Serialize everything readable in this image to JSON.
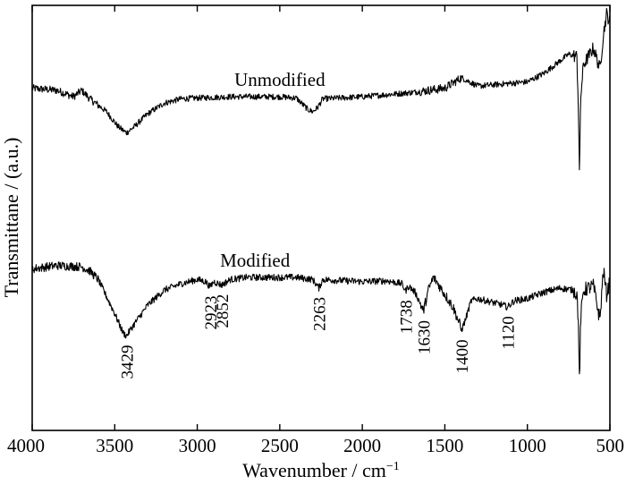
{
  "chart_data": {
    "type": "line",
    "title": "",
    "xlabel": "Wavenumber / cm",
    "xlabel_sup": "−1",
    "ylabel": "Transmittane / (a.u.)",
    "xlim": [
      4000,
      500
    ],
    "x_reversed": true,
    "ylim": [
      0,
      10
    ],
    "y_ticks_shown": false,
    "grid": false,
    "legend": "none",
    "x_ticks": [
      4000,
      3500,
      3000,
      2500,
      2000,
      1500,
      1000,
      500
    ],
    "x_tick_labels": [
      "4000",
      "3500",
      "3000",
      "2500",
      "2000",
      "1500",
      "1000",
      "500"
    ],
    "line_color": "#000000",
    "series": [
      {
        "name": "Unmodified",
        "label_x": 2500,
        "noise": 0.07,
        "points": [
          [
            4000,
            8.05
          ],
          [
            3850,
            8.0
          ],
          [
            3750,
            7.85
          ],
          [
            3700,
            8.0
          ],
          [
            3650,
            7.8
          ],
          [
            3550,
            7.5
          ],
          [
            3480,
            7.15
          ],
          [
            3429,
            7.0
          ],
          [
            3380,
            7.15
          ],
          [
            3300,
            7.45
          ],
          [
            3200,
            7.7
          ],
          [
            3100,
            7.8
          ],
          [
            3000,
            7.82
          ],
          [
            2800,
            7.85
          ],
          [
            2500,
            7.85
          ],
          [
            2400,
            7.82
          ],
          [
            2330,
            7.55
          ],
          [
            2300,
            7.5
          ],
          [
            2270,
            7.6
          ],
          [
            2240,
            7.8
          ],
          [
            2000,
            7.85
          ],
          [
            1700,
            7.95
          ],
          [
            1500,
            8.05
          ],
          [
            1400,
            8.3
          ],
          [
            1300,
            8.1
          ],
          [
            1150,
            8.15
          ],
          [
            1000,
            8.2
          ],
          [
            900,
            8.4
          ],
          [
            800,
            8.7
          ],
          [
            750,
            8.85
          ],
          [
            700,
            8.8
          ],
          [
            690,
            7.5
          ],
          [
            684,
            5.8
          ],
          [
            678,
            7.8
          ],
          [
            660,
            8.6
          ],
          [
            600,
            9.0
          ],
          [
            560,
            8.5
          ],
          [
            540,
            9.3
          ],
          [
            520,
            9.8
          ],
          [
            500,
            9.6
          ]
        ]
      },
      {
        "name": "Modified",
        "label_x": 2650,
        "noise": 0.08,
        "points": [
          [
            4000,
            3.8
          ],
          [
            3850,
            3.88
          ],
          [
            3700,
            3.85
          ],
          [
            3650,
            3.75
          ],
          [
            3600,
            3.55
          ],
          [
            3500,
            2.75
          ],
          [
            3450,
            2.3
          ],
          [
            3429,
            2.22
          ],
          [
            3400,
            2.4
          ],
          [
            3300,
            2.95
          ],
          [
            3200,
            3.3
          ],
          [
            3100,
            3.45
          ],
          [
            3000,
            3.55
          ],
          [
            2950,
            3.5
          ],
          [
            2923,
            3.38
          ],
          [
            2900,
            3.5
          ],
          [
            2852,
            3.42
          ],
          [
            2800,
            3.55
          ],
          [
            2700,
            3.6
          ],
          [
            2400,
            3.6
          ],
          [
            2300,
            3.55
          ],
          [
            2263,
            3.35
          ],
          [
            2240,
            3.55
          ],
          [
            2000,
            3.5
          ],
          [
            1850,
            3.52
          ],
          [
            1760,
            3.45
          ],
          [
            1738,
            3.28
          ],
          [
            1720,
            3.4
          ],
          [
            1680,
            3.25
          ],
          [
            1650,
            3.0
          ],
          [
            1630,
            2.8
          ],
          [
            1600,
            3.3
          ],
          [
            1570,
            3.6
          ],
          [
            1550,
            3.5
          ],
          [
            1500,
            3.2
          ],
          [
            1450,
            2.9
          ],
          [
            1410,
            2.5
          ],
          [
            1400,
            2.35
          ],
          [
            1380,
            2.55
          ],
          [
            1340,
            3.05
          ],
          [
            1300,
            3.1
          ],
          [
            1250,
            3.05
          ],
          [
            1200,
            3.0
          ],
          [
            1150,
            2.95
          ],
          [
            1120,
            2.9
          ],
          [
            1080,
            3.05
          ],
          [
            1000,
            3.1
          ],
          [
            900,
            3.25
          ],
          [
            800,
            3.35
          ],
          [
            720,
            3.3
          ],
          [
            700,
            3.2
          ],
          [
            690,
            2.5
          ],
          [
            684,
            0.9
          ],
          [
            678,
            2.6
          ],
          [
            660,
            3.3
          ],
          [
            600,
            3.4
          ],
          [
            560,
            2.6
          ],
          [
            540,
            3.8
          ],
          [
            520,
            3.2
          ],
          [
            500,
            3.5
          ]
        ]
      }
    ],
    "annotations": [
      {
        "text": "3429",
        "x": 3429,
        "series": 1
      },
      {
        "text": "2923",
        "x": 2923,
        "series": 1
      },
      {
        "text": "2852",
        "x": 2852,
        "series": 1
      },
      {
        "text": "2263",
        "x": 2263,
        "series": 1
      },
      {
        "text": "1738",
        "x": 1738,
        "series": 1
      },
      {
        "text": "1630",
        "x": 1630,
        "series": 1
      },
      {
        "text": "1400",
        "x": 1400,
        "series": 1
      },
      {
        "text": "1120",
        "x": 1120,
        "series": 1
      }
    ]
  }
}
